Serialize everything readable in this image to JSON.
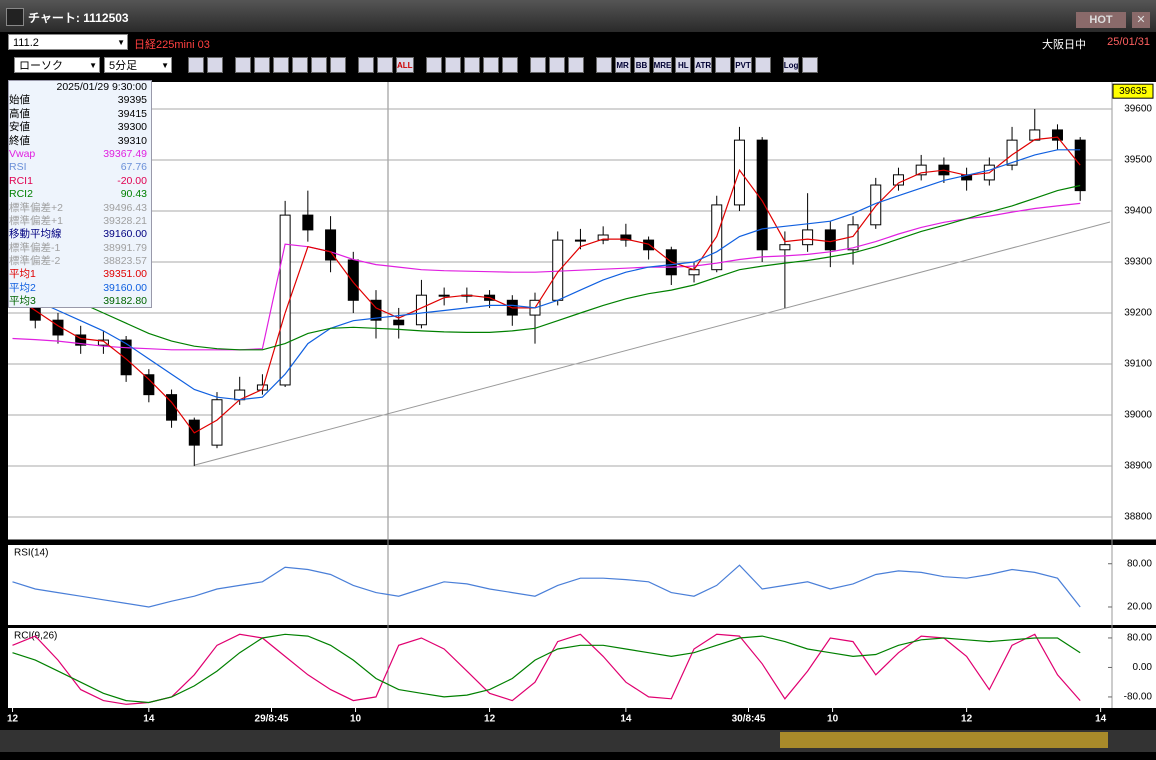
{
  "window": {
    "title": "チャート: 1112503",
    "hot": "HOT"
  },
  "header": {
    "code": "111.2",
    "instrument": "日経225mini 03",
    "session": "大阪日中",
    "date": "25/01/31"
  },
  "toolbar": {
    "chart_kind": "ローソク",
    "interval": "5分足",
    "buttons": [
      "ALL",
      "MR",
      "BB",
      "MRE",
      "HL",
      "ATR",
      "PVT",
      "Log"
    ]
  },
  "info_panel": {
    "datetime": "2025/01/29 9:30:00",
    "rows": [
      {
        "label": "始値",
        "value": "39395",
        "color": "#000000"
      },
      {
        "label": "高値",
        "value": "39415",
        "color": "#000000"
      },
      {
        "label": "安値",
        "value": "39300",
        "color": "#000000"
      },
      {
        "label": "終値",
        "value": "39310",
        "color": "#000000"
      },
      {
        "label": "Vwap",
        "value": "39367.49",
        "color": "#e020e0"
      },
      {
        "label": "RSI",
        "value": "67.76",
        "color": "#6a8fd8"
      },
      {
        "label": "RCI1",
        "value": "-20.00",
        "color": "#e00050"
      },
      {
        "label": "RCI2",
        "value": "90.43",
        "color": "#008000"
      },
      {
        "label": "標準偏差+2",
        "value": "39496.43",
        "color": "#a0a0a0"
      },
      {
        "label": "標準偏差+1",
        "value": "39328.21",
        "color": "#a0a0a0"
      },
      {
        "label": "移動平均線",
        "value": "39160.00",
        "color": "#000080"
      },
      {
        "label": "標準偏差-1",
        "value": "38991.79",
        "color": "#a0a0a0"
      },
      {
        "label": "標準偏差-2",
        "value": "38823.57",
        "color": "#a0a0a0"
      },
      {
        "label": "平均1",
        "value": "39351.00",
        "color": "#e00000"
      },
      {
        "label": "平均2",
        "value": "39160.00",
        "color": "#1060e0"
      },
      {
        "label": "平均3",
        "value": "39182.80",
        "color": "#006400"
      }
    ]
  },
  "chart_data": [
    {
      "type": "candlestick",
      "x": [
        0,
        1,
        2,
        3,
        4,
        5,
        6,
        7,
        8,
        9,
        10,
        11,
        12,
        13,
        14,
        15,
        16,
        17,
        18,
        19,
        20,
        21,
        22,
        23,
        24,
        25,
        26,
        27,
        28,
        29,
        30,
        31,
        32,
        33,
        34,
        35,
        36,
        37,
        38,
        39,
        40,
        41,
        42,
        43,
        44,
        45,
        46,
        47
      ],
      "open": [
        39250,
        39225,
        39186,
        39157,
        39137,
        39147,
        39079,
        39040,
        38990,
        38941,
        39030,
        39049,
        39059,
        39392,
        39363,
        39304,
        39225,
        39186,
        39177,
        39235,
        39235,
        39235,
        39225,
        39196,
        39225,
        39343,
        39343,
        39353,
        39343,
        39324,
        39275,
        39285,
        39412,
        39539,
        39324,
        39334,
        39363,
        39324,
        39373,
        39451,
        39471,
        39490,
        39471,
        39461,
        39490,
        39539,
        39559,
        39539
      ],
      "high": [
        39265,
        39240,
        39200,
        39175,
        39165,
        39155,
        39090,
        39050,
        38995,
        39045,
        39075,
        39080,
        39420,
        39440,
        39390,
        39320,
        39245,
        39210,
        39265,
        39250,
        39250,
        39245,
        39235,
        39240,
        39360,
        39365,
        39370,
        39375,
        39350,
        39330,
        39300,
        39430,
        39565,
        39545,
        39360,
        39435,
        39380,
        39390,
        39465,
        39485,
        39510,
        39505,
        39485,
        39505,
        39565,
        39600,
        39570,
        39545
      ],
      "low": [
        39210,
        39170,
        39140,
        39120,
        39120,
        39065,
        39025,
        38975,
        38900,
        38935,
        39020,
        39040,
        39055,
        39340,
        39280,
        39200,
        39150,
        39150,
        39170,
        39215,
        39220,
        39210,
        39175,
        39140,
        39215,
        39325,
        39335,
        39330,
        39305,
        39255,
        39260,
        39280,
        39400,
        39300,
        39210,
        39320,
        39290,
        39295,
        39365,
        39440,
        39460,
        39455,
        39440,
        39450,
        39480,
        39540,
        39520,
        39420
      ],
      "close": [
        39225,
        39186,
        39157,
        39137,
        39147,
        39079,
        39040,
        38990,
        38941,
        39030,
        39049,
        39059,
        39392,
        39363,
        39304,
        39225,
        39186,
        39177,
        39235,
        39235,
        39235,
        39225,
        39196,
        39225,
        39343,
        39343,
        39353,
        39343,
        39324,
        39275,
        39285,
        39412,
        39539,
        39324,
        39334,
        39363,
        39324,
        39373,
        39451,
        39471,
        39490,
        39471,
        39461,
        39490,
        39539,
        39559,
        39539,
        39440
      ],
      "series": [
        {
          "name": "Vwap",
          "color": "#e020e0",
          "values": [
            39150,
            39148,
            39145,
            39140,
            39135,
            39132,
            39130,
            39128,
            39128,
            39128,
            39128,
            39130,
            39335,
            39330,
            39320,
            39305,
            39295,
            39290,
            39285,
            39283,
            39282,
            39281,
            39280,
            39280,
            39282,
            39284,
            39286,
            39288,
            39290,
            39290,
            39292,
            39298,
            39305,
            39310,
            39312,
            39315,
            39320,
            39328,
            39340,
            39355,
            39368,
            39378,
            39385,
            39390,
            39398,
            39405,
            39410,
            39415
          ]
        },
        {
          "name": "平均1",
          "color": "#e00000",
          "values": [
            39235,
            39205,
            39175,
            39150,
            39145,
            39110,
            39070,
            39025,
            38965,
            38990,
            39030,
            39050,
            39200,
            39330,
            39320,
            39260,
            39210,
            39190,
            39210,
            39230,
            39235,
            39230,
            39210,
            39210,
            39280,
            39330,
            39345,
            39345,
            39335,
            39300,
            39285,
            39350,
            39480,
            39420,
            39340,
            39345,
            39340,
            39350,
            39410,
            39455,
            39475,
            39480,
            39470,
            39475,
            39510,
            39540,
            39545,
            39490
          ]
        },
        {
          "name": "平均2",
          "color": "#1060e0",
          "values": [
            39240,
            39225,
            39205,
            39185,
            39165,
            39140,
            39110,
            39080,
            39050,
            39035,
            39030,
            39035,
            39080,
            39140,
            39170,
            39185,
            39190,
            39195,
            39200,
            39205,
            39210,
            39215,
            39215,
            39210,
            39225,
            39245,
            39265,
            39280,
            39290,
            39295,
            39300,
            39320,
            39350,
            39365,
            39370,
            39375,
            39380,
            39395,
            39415,
            39430,
            39445,
            39460,
            39470,
            39480,
            39495,
            39510,
            39520,
            39520
          ]
        },
        {
          "name": "平均3",
          "color": "#008000",
          "values": [
            39265,
            39255,
            39240,
            39220,
            39200,
            39180,
            39160,
            39145,
            39135,
            39130,
            39128,
            39128,
            39140,
            39160,
            39170,
            39172,
            39170,
            39168,
            39165,
            39163,
            39162,
            39162,
            39165,
            39170,
            39185,
            39200,
            39215,
            39228,
            39238,
            39245,
            39255,
            39270,
            39285,
            39292,
            39298,
            39303,
            39310,
            39318,
            39330,
            39345,
            39360,
            39372,
            39385,
            39398,
            39410,
            39425,
            39440,
            39450
          ]
        }
      ],
      "last_price": 39635,
      "xlim": [
        -0.2,
        48.4
      ],
      "xticks": [
        {
          "value": 0,
          "label": "12"
        },
        {
          "value": 6,
          "label": "14"
        },
        {
          "value": 11.4,
          "label": "29/8:45"
        },
        {
          "value": 15.1,
          "label": "10"
        },
        {
          "value": 21,
          "label": "12"
        },
        {
          "value": 27,
          "label": "14"
        },
        {
          "value": 32.4,
          "label": "30/8:45"
        },
        {
          "value": 36.1,
          "label": "10"
        },
        {
          "value": 42,
          "label": "12"
        },
        {
          "value": 47.9,
          "label": "14"
        }
      ],
      "ylim": [
        38755,
        39653
      ],
      "yticks": [
        38800,
        38900,
        39000,
        39100,
        39200,
        39300,
        39400,
        39500,
        39600
      ],
      "grid": true
    },
    {
      "type": "line",
      "title": "RSI(14)",
      "x": [
        0,
        1,
        2,
        3,
        4,
        5,
        6,
        7,
        8,
        9,
        10,
        11,
        12,
        13,
        14,
        15,
        16,
        17,
        18,
        19,
        20,
        21,
        22,
        23,
        24,
        25,
        26,
        27,
        28,
        29,
        30,
        31,
        32,
        33,
        34,
        35,
        36,
        37,
        38,
        39,
        40,
        41,
        42,
        43,
        44,
        45,
        46,
        47
      ],
      "series": [
        {
          "color": "#4a7fd8",
          "values": [
            55,
            45,
            40,
            35,
            30,
            25,
            20,
            28,
            35,
            45,
            50,
            55,
            75,
            72,
            65,
            50,
            40,
            35,
            45,
            55,
            52,
            45,
            40,
            35,
            50,
            60,
            60,
            58,
            55,
            40,
            35,
            50,
            78,
            45,
            50,
            55,
            45,
            52,
            65,
            70,
            68,
            62,
            60,
            65,
            72,
            68,
            60,
            20
          ]
        }
      ],
      "ylim": [
        -5,
        106
      ],
      "yticks": [
        {
          "value": 20,
          "label": "20.00"
        },
        {
          "value": 80,
          "label": "80.00"
        }
      ]
    },
    {
      "type": "line",
      "title": "RCI(9,26)",
      "x": [
        0,
        1,
        2,
        3,
        4,
        5,
        6,
        7,
        8,
        9,
        10,
        11,
        12,
        13,
        14,
        15,
        16,
        17,
        18,
        19,
        20,
        21,
        22,
        23,
        24,
        25,
        26,
        27,
        28,
        29,
        30,
        31,
        32,
        33,
        34,
        35,
        36,
        37,
        38,
        39,
        40,
        41,
        42,
        43,
        44,
        45,
        46,
        47
      ],
      "series": [
        {
          "color": "#e00070",
          "values": [
            60,
            85,
            20,
            -60,
            -90,
            -100,
            -95,
            -80,
            -20,
            60,
            90,
            80,
            30,
            -20,
            -60,
            -90,
            -80,
            60,
            80,
            50,
            -10,
            -70,
            -90,
            -40,
            70,
            90,
            30,
            -40,
            -80,
            -85,
            50,
            90,
            85,
            10,
            -85,
            -10,
            80,
            70,
            -20,
            40,
            85,
            80,
            30,
            -60,
            60,
            90,
            -20,
            -90
          ]
        },
        {
          "color": "#008000",
          "values": [
            40,
            20,
            -10,
            -40,
            -70,
            -90,
            -95,
            -80,
            -50,
            -10,
            40,
            80,
            90,
            85,
            60,
            20,
            -30,
            -60,
            -70,
            -80,
            -75,
            -60,
            -30,
            20,
            50,
            60,
            60,
            50,
            40,
            30,
            40,
            60,
            80,
            85,
            70,
            50,
            40,
            30,
            35,
            60,
            75,
            80,
            75,
            70,
            75,
            80,
            80,
            40
          ]
        }
      ],
      "ylim": [
        -110,
        107
      ],
      "yticks": [
        {
          "value": -80,
          "label": "-80.00"
        },
        {
          "value": 0,
          "label": "0.00"
        },
        {
          "value": 80,
          "label": "80.00"
        }
      ]
    }
  ]
}
